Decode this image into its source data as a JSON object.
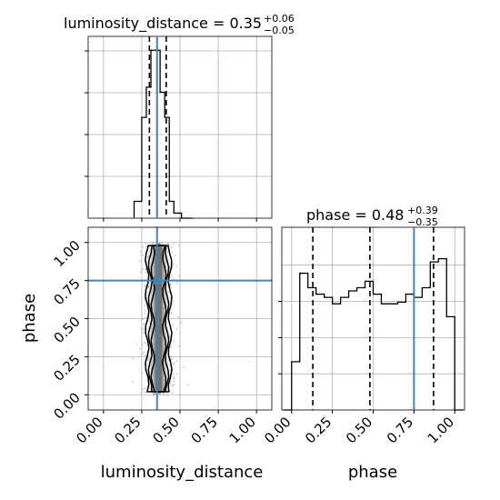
{
  "colors": {
    "truth": "#4682b4",
    "hist": "#000000",
    "grid": "#b0b0b0"
  },
  "chart_data": {
    "type": "corner",
    "parameters": [
      "luminosity_distance",
      "phase"
    ],
    "truths": {
      "luminosity_distance": 0.35,
      "phase": 0.75
    },
    "grid": true,
    "panels": [
      {
        "id": "luminosity_distance_hist",
        "type": "histogram",
        "title_main": "luminosity_distance = 0.35",
        "title_sup": "+0.06",
        "title_sub": "−0.05",
        "xlim": [
          -0.1,
          1.1
        ],
        "bin_edges": [
          0.2,
          0.25,
          0.28,
          0.31,
          0.34,
          0.37,
          0.4,
          0.43,
          0.46,
          0.51,
          0.55,
          0.58
        ],
        "counts": [
          0.1,
          0.6,
          0.78,
          1.0,
          1.0,
          0.75,
          0.6,
          0.1,
          0.03,
          0.0,
          0.0
        ],
        "quantiles": [
          0.3,
          0.35,
          0.41
        ],
        "truth": 0.35
      },
      {
        "id": "phase_hist",
        "type": "histogram",
        "title_main": "phase = 0.48",
        "title_sup": "+0.39",
        "title_sub": "−0.35",
        "xlim": [
          -0.06,
          1.06
        ],
        "xticks": [
          "0.00",
          "0.25",
          "0.50",
          "0.75",
          "1.00"
        ],
        "xlabel": "phase",
        "bin_edges": [
          -0.05,
          0.0,
          0.05,
          0.1,
          0.15,
          0.2,
          0.25,
          0.3,
          0.35,
          0.4,
          0.45,
          0.5,
          0.55,
          0.6,
          0.65,
          0.7,
          0.75,
          0.8,
          0.85,
          0.9,
          0.95,
          1.0,
          1.05
        ],
        "counts": [
          0.0,
          0.3,
          0.85,
          0.76,
          0.72,
          0.7,
          0.66,
          0.7,
          0.74,
          0.76,
          0.8,
          0.72,
          0.66,
          0.66,
          0.67,
          0.72,
          0.7,
          0.76,
          0.92,
          0.94,
          0.58,
          0.0
        ],
        "quantiles": [
          0.13,
          0.48,
          0.87
        ],
        "truth": 0.75
      },
      {
        "id": "joint_2d",
        "type": "scatter-contour",
        "xlim": [
          -0.1,
          1.1
        ],
        "ylim": [
          -0.1,
          1.1
        ],
        "xticks": [
          "0.00",
          "0.25",
          "0.50",
          "0.75",
          "1.00"
        ],
        "yticks": [
          "0.00",
          "0.25",
          "0.50",
          "0.75",
          "1.00"
        ],
        "xlabel": "luminosity_distance",
        "ylabel": "phase",
        "x_center": 0.36,
        "x_spread": 0.05,
        "y_range": [
          0.0,
          1.0
        ]
      }
    ]
  }
}
